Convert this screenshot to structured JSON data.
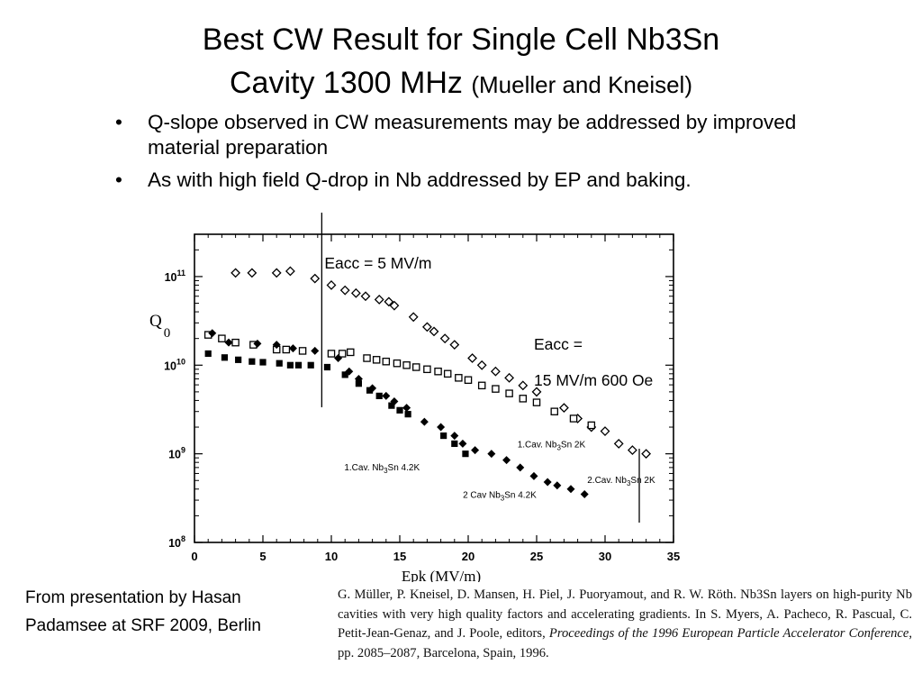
{
  "slide": {
    "title_line1": "Best CW Result for Single Cell Nb3Sn",
    "title_line2_main": "Cavity 1300 MHz",
    "title_line2_sub": "(Mueller and Kneisel)",
    "bullets": [
      "Q-slope observed in CW measurements may be addressed by improved material preparation",
      "As with high field Q-drop in Nb addressed by EP and baking."
    ],
    "bullet_glyph": "•",
    "source_note": "From presentation by Hasan Padamsee at SRF 2009, Berlin",
    "reference": {
      "before_italic": "G. Müller, P. Kneisel, D. Mansen, H. Piel, J. Puoryamout, and R. W. Röth. Nb3Sn layers on high-purity Nb cavities with very high quality factors and accelerating gradients. In S. Myers, A. Pacheco, R. Pascual, C. Petit-Jean-Genaz, and J. Poole, editors,",
      "italic": "Proceedings of the 1996 European Particle Accelerator Conference",
      "after_italic": ", pp. 2085–2087, Barcelona, Spain, 1996."
    }
  },
  "chart_data": {
    "type": "scatter",
    "xlabel": "Epk (MV/m)",
    "ylabel": "Q",
    "ylabel_sub": "0",
    "y_scale": "log",
    "xlim": [
      0,
      35
    ],
    "ylim": [
      100000000.0,
      300000000000.0
    ],
    "x_ticks": [
      0,
      5,
      10,
      15,
      20,
      25,
      30,
      35
    ],
    "y_ticks": [
      {
        "value": 100000000.0,
        "base": "10",
        "exp": "8"
      },
      {
        "value": 1000000000.0,
        "base": "10",
        "exp": "9"
      },
      {
        "value": 10000000000.0,
        "base": "10",
        "exp": "10"
      },
      {
        "value": 100000000000.0,
        "base": "10",
        "exp": "11"
      }
    ],
    "series": [
      {
        "name": "1.Cav. Nb3Sn 2K",
        "marker": "open-diamond",
        "points": [
          [
            3,
            110000000000.0
          ],
          [
            4.2,
            110000000000.0
          ],
          [
            6,
            110000000000.0
          ],
          [
            7,
            115000000000.0
          ],
          [
            8.8,
            95000000000.0
          ],
          [
            10,
            80000000000.0
          ],
          [
            11,
            70000000000.0
          ],
          [
            11.8,
            65000000000.0
          ],
          [
            12.5,
            60000000000.0
          ],
          [
            13.5,
            55000000000.0
          ],
          [
            14.2,
            52000000000.0
          ],
          [
            14.6,
            47000000000.0
          ],
          [
            16,
            35000000000.0
          ],
          [
            17,
            27000000000.0
          ],
          [
            17.5,
            24000000000.0
          ],
          [
            18.3,
            20000000000.0
          ],
          [
            19,
            17000000000.0
          ],
          [
            20.3,
            12000000000.0
          ],
          [
            21,
            10000000000.0
          ],
          [
            22,
            8500000000.0
          ],
          [
            23,
            7200000000.0
          ],
          [
            24,
            5900000000.0
          ],
          [
            25,
            5000000000.0
          ],
          [
            27,
            3300000000.0
          ],
          [
            28,
            2500000000.0
          ],
          [
            29,
            2000000000.0
          ],
          [
            30,
            1800000000.0
          ],
          [
            31,
            1300000000.0
          ],
          [
            32,
            1100000000.0
          ],
          [
            33,
            1000000000.0
          ]
        ]
      },
      {
        "name": "2.Cav. Nb3Sn 2K",
        "marker": "open-square",
        "points": [
          [
            1,
            22000000000.0
          ],
          [
            2,
            20000000000.0
          ],
          [
            3,
            18000000000.0
          ],
          [
            4.3,
            17000000000.0
          ],
          [
            6,
            15000000000.0
          ],
          [
            6.7,
            15000000000.0
          ],
          [
            7.9,
            14500000000.0
          ],
          [
            10,
            13500000000.0
          ],
          [
            10.8,
            13500000000.0
          ],
          [
            11.4,
            14000000000.0
          ],
          [
            12.6,
            12000000000.0
          ],
          [
            13.3,
            11500000000.0
          ],
          [
            14,
            11000000000.0
          ],
          [
            14.8,
            10500000000.0
          ],
          [
            15.5,
            10000000000.0
          ],
          [
            16.2,
            9500000000.0
          ],
          [
            17,
            9000000000.0
          ],
          [
            17.8,
            8500000000.0
          ],
          [
            18.5,
            8000000000.0
          ],
          [
            19.3,
            7200000000.0
          ],
          [
            20,
            6800000000.0
          ],
          [
            21,
            5900000000.0
          ],
          [
            22,
            5400000000.0
          ],
          [
            23,
            4800000000.0
          ],
          [
            24,
            4200000000.0
          ],
          [
            25,
            3800000000.0
          ],
          [
            26.3,
            3000000000.0
          ],
          [
            27.7,
            2500000000.0
          ],
          [
            29,
            2100000000.0
          ]
        ]
      },
      {
        "name": "1.Cav. Nb3Sn 4.2K",
        "marker": "filled-square",
        "points": [
          [
            1,
            13500000000.0
          ],
          [
            2.2,
            12200000000.0
          ],
          [
            3.2,
            11500000000.0
          ],
          [
            4.2,
            11000000000.0
          ],
          [
            5,
            10800000000.0
          ],
          [
            6.2,
            10500000000.0
          ],
          [
            7,
            10000000000.0
          ],
          [
            7.6,
            10000000000.0
          ],
          [
            8.5,
            10000000000.0
          ],
          [
            9.7,
            9500000000.0
          ],
          [
            11,
            7800000000.0
          ],
          [
            12,
            6200000000.0
          ],
          [
            12.8,
            5200000000.0
          ],
          [
            13.5,
            4500000000.0
          ],
          [
            14.4,
            3500000000.0
          ],
          [
            15,
            3100000000.0
          ],
          [
            15.6,
            2800000000.0
          ],
          [
            18.2,
            1600000000.0
          ],
          [
            19,
            1300000000.0
          ],
          [
            19.8,
            1000000000.0
          ]
        ]
      },
      {
        "name": "2.Cav Nb3Sn 4.2K",
        "marker": "filled-diamond",
        "points": [
          [
            1.3,
            23000000000.0
          ],
          [
            2.5,
            18000000000.0
          ],
          [
            4.6,
            17500000000.0
          ],
          [
            6,
            17000000000.0
          ],
          [
            7.2,
            15500000000.0
          ],
          [
            8.8,
            14500000000.0
          ],
          [
            10.5,
            12000000000.0
          ],
          [
            11.3,
            8500000000.0
          ],
          [
            12,
            7000000000.0
          ],
          [
            13,
            5500000000.0
          ],
          [
            14,
            4500000000.0
          ],
          [
            14.6,
            3900000000.0
          ],
          [
            15.5,
            3300000000.0
          ],
          [
            16.8,
            2300000000.0
          ],
          [
            18,
            2000000000.0
          ],
          [
            19,
            1600000000.0
          ],
          [
            19.6,
            1300000000.0
          ],
          [
            20.5,
            1100000000.0
          ],
          [
            21.7,
            1000000000.0
          ],
          [
            22.8,
            850000000.0
          ],
          [
            23.8,
            700000000.0
          ],
          [
            24.8,
            560000000.0
          ],
          [
            25.8,
            480000000.0
          ],
          [
            26.5,
            440000000.0
          ],
          [
            27.5,
            400000000.0
          ],
          [
            28.5,
            350000000.0
          ]
        ]
      }
    ],
    "series_labels": [
      {
        "index": 0,
        "sub": "3",
        "main_pre": "1.Cav.  Nb",
        "main_post": "Sn  2K",
        "at": [
          23.6,
          1180000000.0
        ],
        "anchor": "start"
      },
      {
        "index": 1,
        "sub": "3",
        "main_pre": "2.Cav.  Nb",
        "main_post": "Sn  2K",
        "at": [
          28.7,
          470000000.0
        ],
        "anchor": "start"
      },
      {
        "index": 2,
        "sub": "3",
        "main_pre": "1.Cav.  Nb",
        "main_post": "Sn  4.2K",
        "at": [
          13.7,
          650000000.0
        ],
        "anchor": "middle"
      },
      {
        "index": 3,
        "sub": "3",
        "main_pre": "2 Cav   Nb",
        "main_post": "Sn  4.2K",
        "at": [
          22.3,
          320000000.0
        ],
        "anchor": "middle"
      }
    ],
    "annotations": [
      {
        "text": "Eacc = 5 MV/m",
        "x_line": 9.3
      },
      {
        "text_line1": "Eacc =",
        "text_line2": "15 MV/m 600 Oe",
        "x_line": 32.5
      }
    ]
  }
}
